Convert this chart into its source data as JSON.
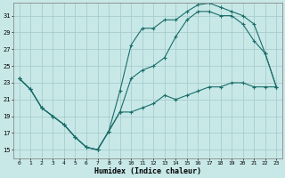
{
  "xlabel": "Humidex (Indice chaleur)",
  "bg_color": "#c8e8e8",
  "grid_color": "#a8cccc",
  "line_color": "#1a6e6a",
  "xlim": [
    -0.5,
    23.5
  ],
  "ylim": [
    14.0,
    32.5
  ],
  "yticks": [
    15,
    17,
    19,
    21,
    23,
    25,
    27,
    29,
    31
  ],
  "xticks": [
    0,
    1,
    2,
    3,
    4,
    5,
    6,
    7,
    8,
    9,
    10,
    11,
    12,
    13,
    14,
    15,
    16,
    17,
    18,
    19,
    20,
    21,
    22,
    23
  ],
  "line1_x": [
    0,
    1,
    2,
    3,
    4,
    5,
    6,
    7,
    8,
    9,
    10,
    11,
    12,
    13,
    14,
    15,
    16,
    17,
    18,
    19,
    20,
    21,
    22,
    23
  ],
  "line1_y": [
    23.5,
    22.2,
    20.0,
    19.0,
    18.0,
    16.5,
    15.3,
    15.0,
    17.2,
    22.0,
    27.5,
    29.5,
    29.5,
    30.5,
    30.5,
    31.5,
    32.3,
    32.5,
    32.0,
    31.5,
    31.0,
    30.0,
    26.5,
    22.5
  ],
  "line2_x": [
    0,
    1,
    2,
    3,
    4,
    5,
    6,
    7,
    8,
    9,
    10,
    11,
    12,
    13,
    14,
    15,
    16,
    17,
    18,
    19,
    20,
    21,
    22,
    23
  ],
  "line2_y": [
    23.5,
    22.2,
    20.0,
    19.0,
    18.0,
    16.5,
    15.3,
    15.0,
    17.2,
    19.5,
    23.5,
    24.5,
    25.0,
    26.0,
    28.5,
    30.5,
    31.5,
    31.5,
    31.0,
    31.0,
    30.0,
    28.0,
    26.5,
    22.5
  ],
  "line3_x": [
    0,
    1,
    2,
    3,
    4,
    5,
    6,
    7,
    8,
    9,
    10,
    11,
    12,
    13,
    14,
    15,
    16,
    17,
    18,
    19,
    20,
    21,
    22,
    23
  ],
  "line3_y": [
    23.5,
    22.2,
    20.0,
    19.0,
    18.0,
    16.5,
    15.3,
    15.0,
    17.2,
    19.5,
    19.5,
    20.0,
    20.5,
    21.5,
    21.0,
    21.5,
    22.0,
    22.5,
    22.5,
    23.0,
    23.0,
    22.5,
    22.5,
    22.5
  ]
}
